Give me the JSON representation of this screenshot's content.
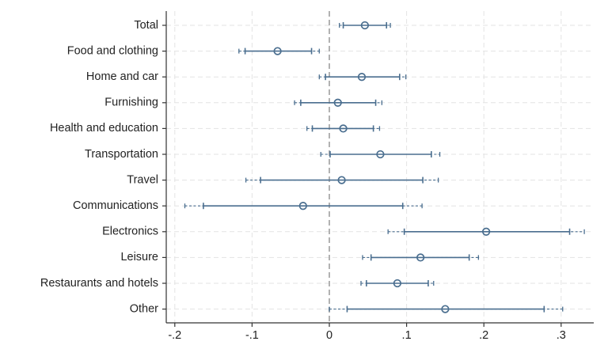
{
  "chart_data": {
    "type": "scatter",
    "title": "",
    "xlabel": "",
    "ylabel": "",
    "xlim": [
      -0.21,
      0.34
    ],
    "x_ticks": [
      -0.2,
      -0.1,
      0,
      0.1,
      0.2,
      0.3
    ],
    "x_tick_labels": [
      "-.2",
      "-.1",
      "0",
      ".1",
      ".2",
      ".3"
    ],
    "grid": true,
    "reference_line_x": 0,
    "colors": {
      "marker": "#4a6e8f",
      "ci_line": "#4a6e8f",
      "reference_line": "#aaaaaa",
      "grid": "#e3e3e3",
      "axis": "#333333"
    },
    "categories": [
      "Total",
      "Food and clothing",
      "Home and car",
      "Furnishing",
      "Health and education",
      "Transportation",
      "Travel",
      "Communications",
      "Electronics",
      "Leisure",
      "Restaurants and hotels",
      "Other"
    ],
    "series": [
      {
        "estimate": [
          0.046,
          -0.067,
          0.042,
          0.011,
          0.018,
          0.066,
          0.016,
          -0.034,
          0.203,
          0.118,
          0.088,
          0.15
        ],
        "ci_inner_low": [
          0.018,
          -0.109,
          -0.005,
          -0.037,
          -0.022,
          0.001,
          -0.089,
          -0.163,
          0.097,
          0.054,
          0.048,
          0.023
        ],
        "ci_inner_high": [
          0.074,
          -0.023,
          0.091,
          0.06,
          0.057,
          0.132,
          0.121,
          0.095,
          0.311,
          0.181,
          0.128,
          0.278
        ],
        "ci_outer_low": [
          0.013,
          -0.117,
          -0.013,
          -0.045,
          -0.029,
          -0.011,
          -0.108,
          -0.187,
          0.076,
          0.043,
          0.041,
          0.0
        ],
        "ci_outer_high": [
          0.079,
          -0.013,
          0.099,
          0.068,
          0.065,
          0.143,
          0.141,
          0.12,
          0.33,
          0.193,
          0.135,
          0.302
        ]
      }
    ]
  }
}
